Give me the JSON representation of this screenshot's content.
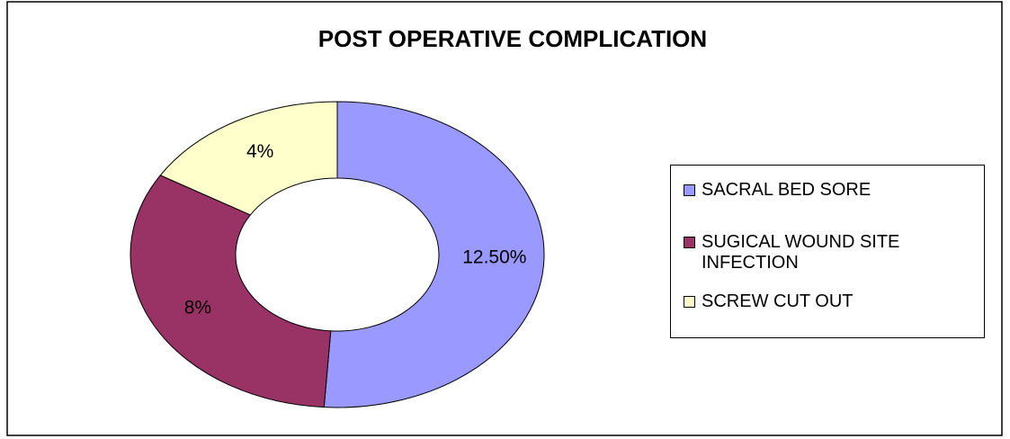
{
  "chart_data": {
    "type": "donut",
    "title": "POST OPERATIVE COMPLICATION",
    "categories": [
      "SACRAL BED SORE",
      "SUGICAL WOUND SITE INFECTION",
      "SCREW CUT OUT"
    ],
    "values": [
      12.5,
      8,
      4
    ],
    "value_labels": [
      "12.50%",
      "8%",
      "4%"
    ],
    "colors": [
      "#9999ff",
      "#993366",
      "#ffffcc"
    ],
    "legend": "right"
  }
}
